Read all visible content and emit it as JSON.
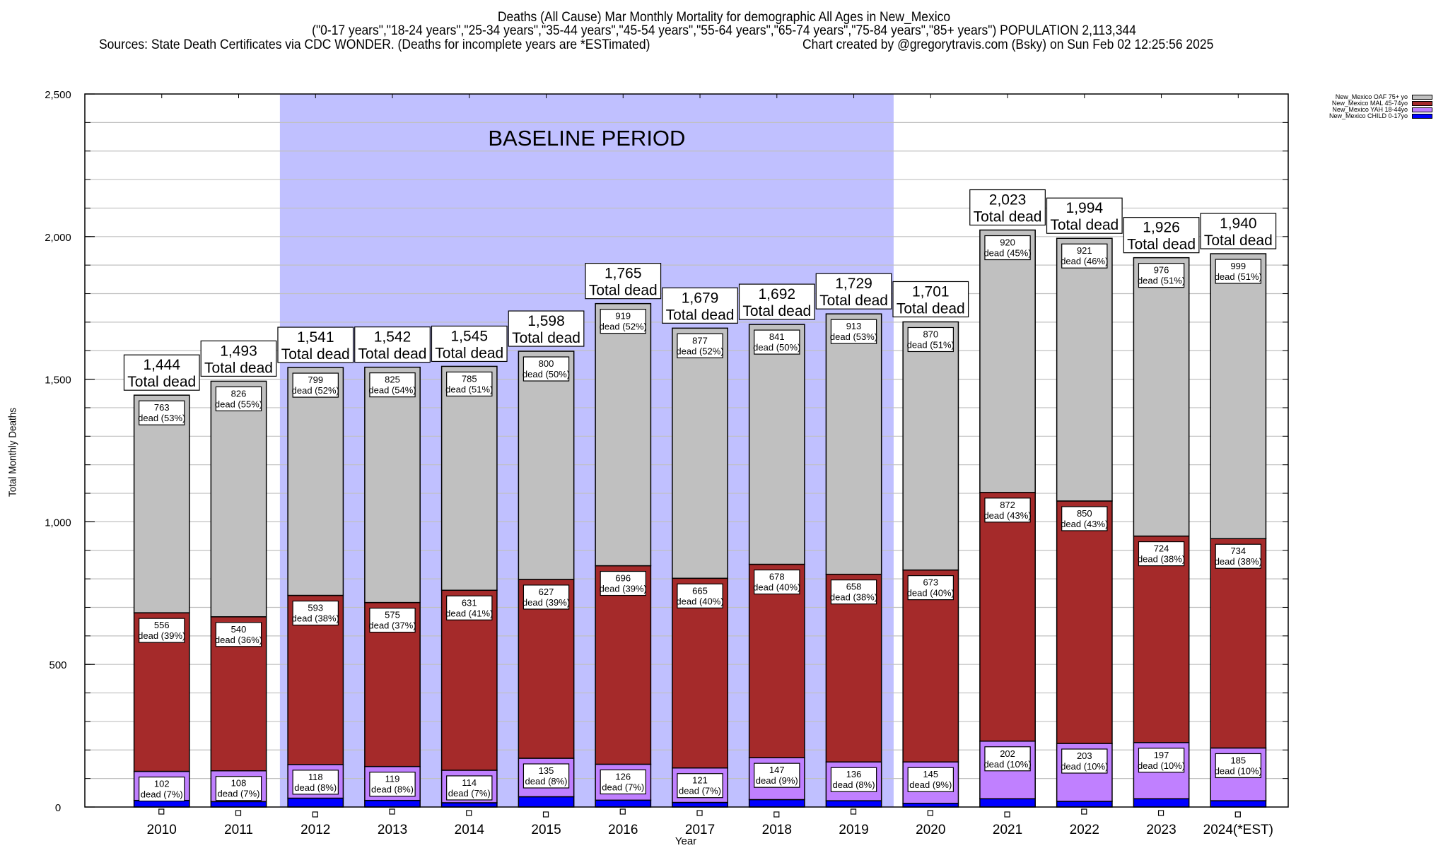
{
  "header": {
    "title_line1": "Deaths (All Cause) Mar Monthly Mortality for demographic All Ages in New_Mexico",
    "title_line2": "(\"0-17 years\",\"18-24 years\",\"25-34 years\",\"35-44 years\",\"45-54 years\",\"55-64 years\",\"65-74 years\",\"75-84 years\",\"85+ years\") POPULATION 2,113,344",
    "sources": "Sources: State Death Certificates via CDC WONDER. (Deaths for incomplete years are *ESTimated)",
    "credit": "Chart created by @gregorytravis.com (Bsky) on Sun Feb 02 12:25:56 2025"
  },
  "chart_data": {
    "type": "bar",
    "stacked": true,
    "title": "Deaths (All Cause) Mar Monthly Mortality for demographic All Ages in New_Mexico",
    "xlabel": "Year",
    "ylabel": "Total Monthly Deaths",
    "ylim": [
      0,
      2500
    ],
    "yticks": [
      0,
      500,
      1000,
      1500,
      2000,
      2500
    ],
    "ytick_labels": [
      "0",
      "500",
      "1,000",
      "1,500",
      "2,000",
      "2,500"
    ],
    "minor_grid_step": 100,
    "grid": true,
    "legend_position": "top-right-outside",
    "categories": [
      "2010",
      "2011",
      "2012",
      "2013",
      "2014",
      "2015",
      "2016",
      "2017",
      "2018",
      "2019",
      "2020",
      "2021",
      "2022",
      "2023",
      "2024(*EST)"
    ],
    "series": [
      {
        "name": "New_Mexico CHILD 0-17yo",
        "color": "#0000ff",
        "values": [
          23,
          19,
          31,
          23,
          15,
          36,
          24,
          16,
          26,
          22,
          13,
          29,
          20,
          29,
          22
        ],
        "labeled": false
      },
      {
        "name": "New_Mexico YAH 18-44yo",
        "color": "#c080ff",
        "values": [
          102,
          108,
          118,
          119,
          114,
          135,
          126,
          121,
          147,
          136,
          145,
          202,
          203,
          197,
          185
        ],
        "percents": [
          "7%",
          "7%",
          "8%",
          "8%",
          "7%",
          "8%",
          "7%",
          "7%",
          "9%",
          "8%",
          "9%",
          "10%",
          "10%",
          "10%",
          "10%"
        ],
        "labeled": true
      },
      {
        "name": "New_Mexico MAL 45-74yo",
        "color": "#a52a2a",
        "values": [
          556,
          540,
          593,
          575,
          631,
          627,
          696,
          665,
          678,
          658,
          673,
          872,
          850,
          724,
          734
        ],
        "percents": [
          "39%",
          "36%",
          "38%",
          "37%",
          "41%",
          "39%",
          "39%",
          "40%",
          "40%",
          "38%",
          "40%",
          "43%",
          "43%",
          "38%",
          "38%"
        ],
        "labeled": true
      },
      {
        "name": "New_Mexico OAF 75+ yo",
        "color": "#c0c0c0",
        "values": [
          763,
          826,
          799,
          825,
          785,
          800,
          919,
          877,
          841,
          913,
          870,
          920,
          921,
          976,
          999
        ],
        "percents": [
          "53%",
          "55%",
          "52%",
          "54%",
          "51%",
          "50%",
          "52%",
          "52%",
          "50%",
          "53%",
          "51%",
          "45%",
          "46%",
          "51%",
          "51%"
        ],
        "labeled": true
      }
    ],
    "totals": [
      1444,
      1493,
      1541,
      1542,
      1545,
      1598,
      1765,
      1679,
      1692,
      1729,
      1701,
      2023,
      1994,
      1926,
      1940
    ],
    "total_labels": [
      "1,444",
      "1,493",
      "1,541",
      "1,542",
      "1,545",
      "1,598",
      "1,765",
      "1,679",
      "1,692",
      "1,729",
      "1,701",
      "2,023",
      "1,994",
      "1,926",
      "1,940"
    ],
    "total_suffix": "Total dead",
    "segment_suffix": "dead",
    "annotations": [
      {
        "text": "BASELINE PERIOD",
        "from_category": "2012",
        "to_category": "2019",
        "color": "#c0c0ff"
      }
    ]
  },
  "legend_order": [
    3,
    2,
    1,
    0
  ]
}
